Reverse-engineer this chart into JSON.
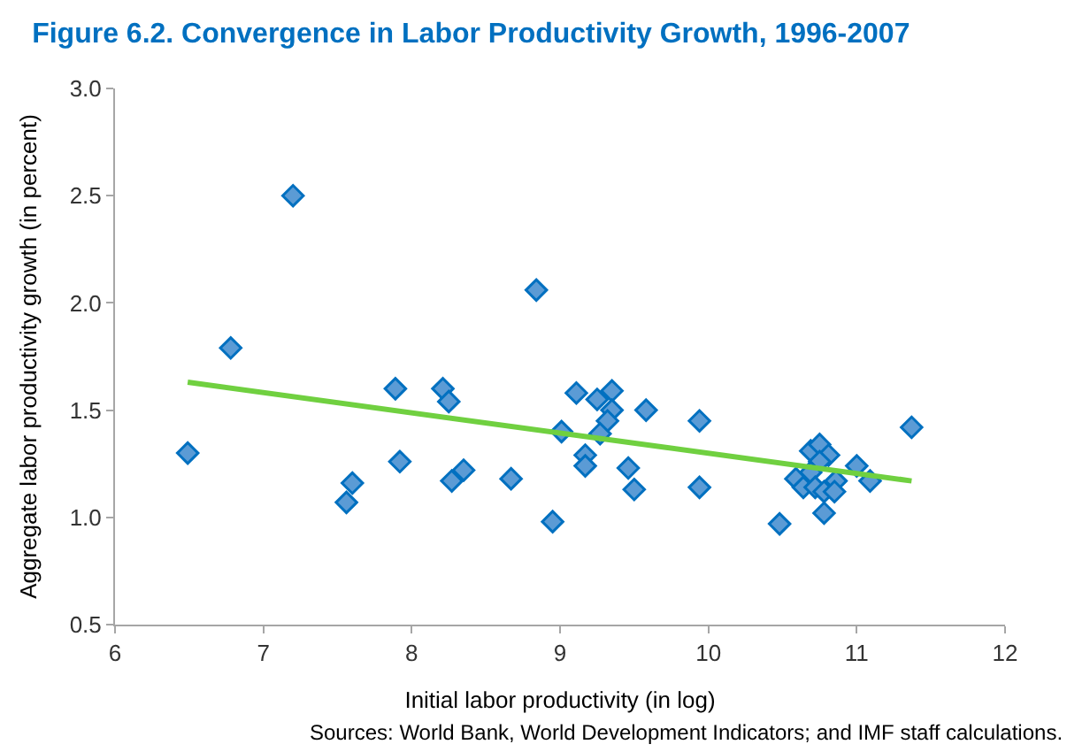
{
  "chart_data": {
    "type": "scatter",
    "title": "Figure 6.2. Convergence in Labor Productivity Growth, 1996-2007",
    "xlabel": "Initial labor productivity (in log)",
    "ylabel": "Aggregate labor productivity growth (in percent)",
    "series": [
      {
        "color": "#5b9bd5",
        "marker": "diamond",
        "x": [
          6.49,
          6.78,
          7.2,
          7.89,
          7.92,
          7.6,
          7.56,
          8.21,
          8.25,
          8.27,
          8.35,
          8.67,
          8.84,
          8.95,
          9.01,
          9.11,
          9.25,
          9.35,
          9.35,
          9.32,
          9.27,
          9.17,
          9.17,
          9.46,
          9.5,
          9.58,
          9.94,
          9.94,
          10.48,
          10.59,
          10.64,
          10.69,
          10.75,
          10.81,
          10.75,
          10.69,
          10.72,
          10.78,
          10.86,
          10.85,
          10.78,
          11.0,
          11.09,
          11.37
        ],
        "values": [
          1.3,
          1.79,
          2.5,
          1.6,
          1.26,
          1.16,
          1.07,
          1.6,
          1.54,
          1.17,
          1.22,
          1.18,
          2.06,
          0.98,
          1.4,
          1.58,
          1.55,
          1.59,
          1.5,
          1.45,
          1.39,
          1.29,
          1.24,
          1.23,
          1.13,
          1.5,
          1.45,
          1.14,
          0.97,
          1.18,
          1.14,
          1.31,
          1.34,
          1.29,
          1.26,
          1.21,
          1.14,
          1.12,
          1.17,
          1.12,
          1.02,
          1.24,
          1.17,
          1.42
        ]
      },
      {
        "type": "line",
        "color": "#70d040",
        "x": [
          6.49,
          11.37
        ],
        "values": [
          1.63,
          1.17
        ]
      }
    ],
    "xlim": [
      6,
      12
    ],
    "xticks": [
      6,
      7,
      8,
      9,
      10,
      11,
      12
    ],
    "ylim": [
      0.5,
      3.0
    ],
    "yticks": [
      0.5,
      {
        "value": 1,
        "label": "1.0"
      },
      1.5,
      {
        "value": 2,
        "label": "2.0"
      },
      2.5,
      {
        "value": 3,
        "label": "3.0"
      }
    ],
    "legend": false,
    "annotations": [
      "Sources: World Bank, World Development Indicators; and IMF staff calculations."
    ]
  }
}
